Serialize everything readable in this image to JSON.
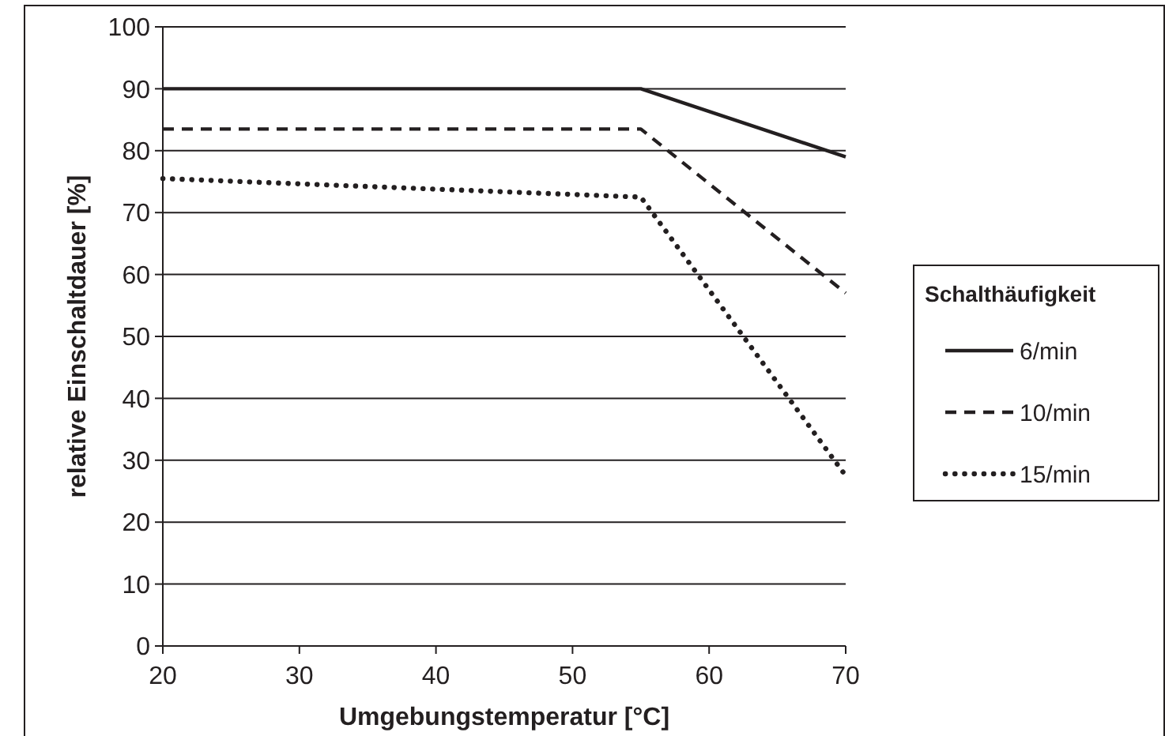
{
  "chart_data": {
    "type": "line",
    "xlabel": "Umgebungstemperatur [°C]",
    "ylabel": "relative Einschaltdauer [%]",
    "legend_title": "Schalthäufigkeit",
    "x": [
      20,
      55,
      70
    ],
    "series": [
      {
        "name": "6/min",
        "color": "#231f20",
        "line_style": "solid",
        "values": [
          90,
          90,
          79
        ]
      },
      {
        "name": "10/min",
        "color": "#231f20",
        "line_style": "dashed",
        "values": [
          83.5,
          83.5,
          57
        ]
      },
      {
        "name": "15/min",
        "color": "#231f20",
        "line_style": "dotted",
        "values": [
          75.5,
          72.5,
          27.5
        ]
      }
    ],
    "xlim": [
      20,
      70
    ],
    "xticks": [
      20,
      30,
      40,
      50,
      60,
      70
    ],
    "ylim": [
      0,
      100
    ],
    "yticks": [
      0,
      10,
      20,
      30,
      40,
      50,
      60,
      70,
      80,
      90,
      100
    ],
    "grid": "y",
    "legend": "right",
    "marker": "none"
  }
}
